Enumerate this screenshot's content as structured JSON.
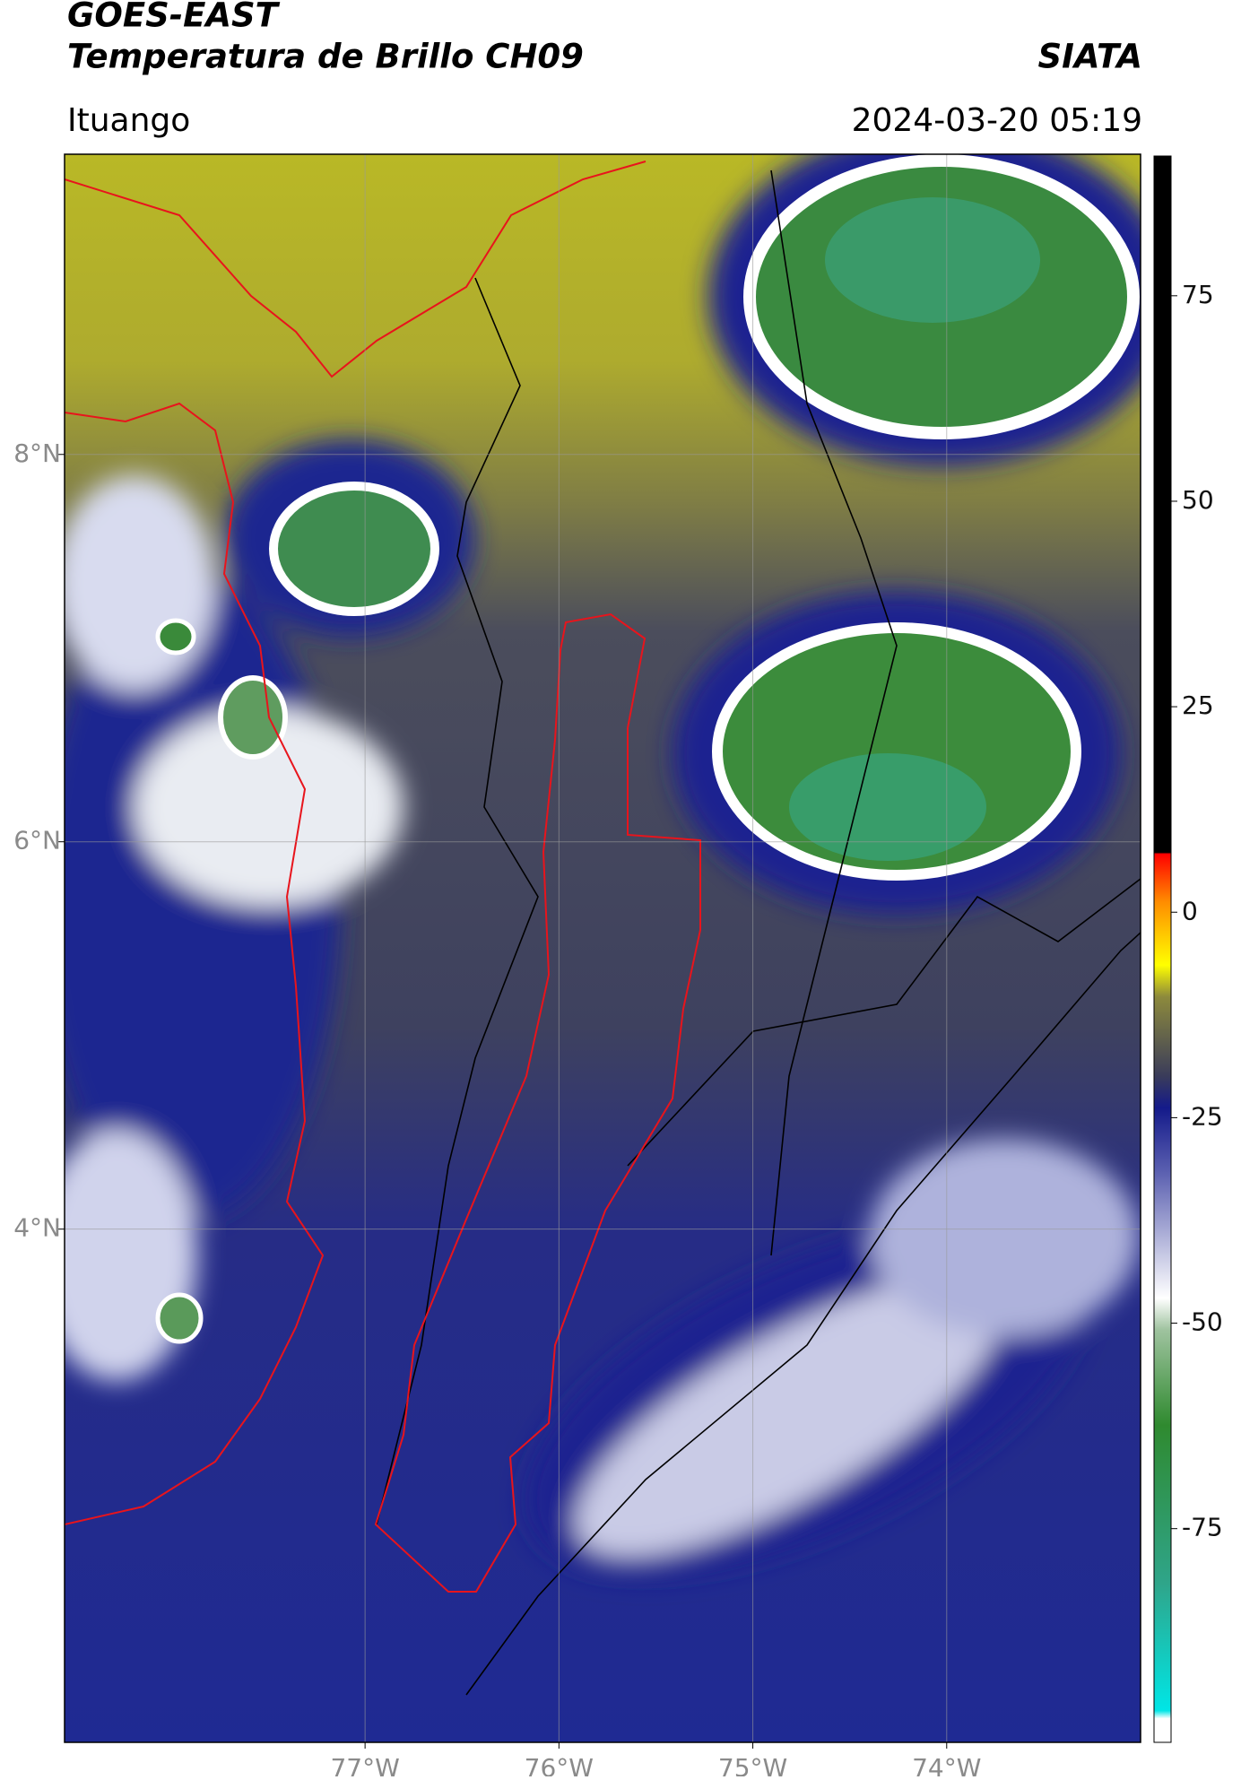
{
  "header": {
    "title": "GOES-EAST",
    "subtitle": "Temperatura de Brillo CH09",
    "brand": "SIATA",
    "location": "Ituango",
    "datetime": "2024-03-20 05:19"
  },
  "map": {
    "xlim": [
      -78.55,
      -73
    ],
    "ylim": [
      1.35,
      9.55
    ],
    "xticks": [
      {
        "value": -77,
        "label": "77°W"
      },
      {
        "value": -76,
        "label": "76°W"
      },
      {
        "value": -75,
        "label": "75°W"
      },
      {
        "value": -74,
        "label": "74°W"
      }
    ],
    "yticks": [
      {
        "value": 4,
        "label": "4°N"
      },
      {
        "value": 6,
        "label": "6°N"
      },
      {
        "value": 8,
        "label": "8°N"
      }
    ],
    "grid": true
  },
  "colorbar": {
    "lim": [
      -101,
      92
    ],
    "ticks": [
      -75,
      -50,
      -25,
      0,
      25,
      50,
      75
    ]
  }
}
